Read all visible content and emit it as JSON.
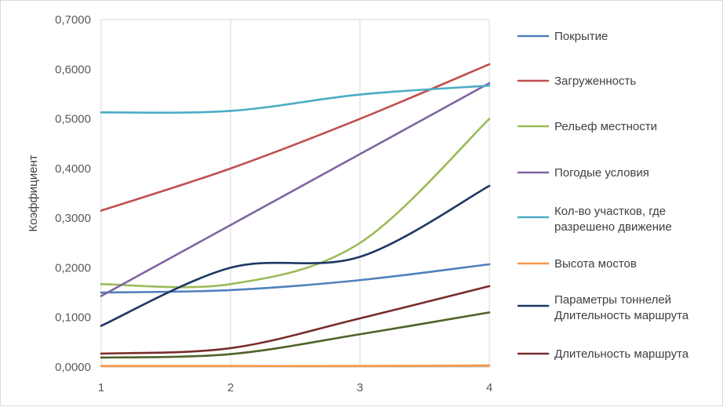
{
  "chart_data": {
    "type": "line",
    "title": "",
    "xlabel": "",
    "ylabel": "Коэффициент",
    "x": [
      1,
      2,
      3,
      4
    ],
    "x_tick_labels": [
      "1",
      "2",
      "3",
      "4"
    ],
    "ylim": [
      0,
      0.7
    ],
    "y_tick_labels": [
      "0,0000",
      "0,1000",
      "0,2000",
      "0,3000",
      "0,4000",
      "0,5000",
      "0,6000",
      "0,7000"
    ],
    "grid": "vertical",
    "legend_position": "right",
    "smooth": true,
    "series": [
      {
        "name": "Покрытие",
        "color": "#4f81bd",
        "values": [
          0.15,
          0.155,
          0.175,
          0.207
        ]
      },
      {
        "name": "Загруженность",
        "color": "#c0504d",
        "values": [
          0.315,
          0.4,
          0.5,
          0.61
        ]
      },
      {
        "name": "Рельеф местности",
        "color": "#9bbb59",
        "values": [
          0.167,
          0.167,
          0.25,
          0.5
        ]
      },
      {
        "name": "Погодые условия",
        "color": "#8064a2",
        "values": [
          0.143,
          0.286,
          0.429,
          0.572
        ]
      },
      {
        "name": "Кол-во участков, где\nразрешено движение",
        "color": "#4bacc6",
        "values": [
          0.513,
          0.516,
          0.549,
          0.567
        ]
      },
      {
        "name": "Высота мостов",
        "color": "#f79646",
        "values": [
          0.002,
          0.002,
          0.002,
          0.003
        ]
      },
      {
        "name": "Параметры тоннелей\nДлительность маршрута",
        "color": "#1f3864",
        "values": [
          0.083,
          0.2,
          0.222,
          0.365
        ]
      },
      {
        "name": "Длительность маршрута",
        "color": "#772c2a",
        "values": [
          0.027,
          0.038,
          0.098,
          0.163
        ]
      },
      {
        "name": "",
        "color": "#4f6228",
        "values": [
          0.019,
          0.026,
          0.066,
          0.11
        ]
      }
    ]
  }
}
